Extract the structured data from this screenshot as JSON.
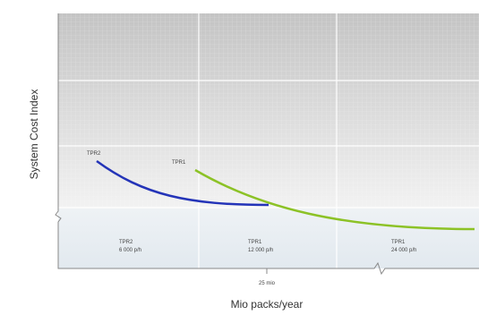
{
  "y_axis_label": "System Cost Index",
  "x_axis_label": "Mio packs/year",
  "x_marker": "25 mio",
  "curves": [
    {
      "label": "TPR2"
    },
    {
      "label": "TPR1"
    }
  ],
  "zones": [
    {
      "name": "TPR2",
      "speed": "6 000 p/h"
    },
    {
      "name": "TPR1",
      "speed": "12 000 p/h"
    },
    {
      "name": "TPR1",
      "speed": "24 000 p/h"
    }
  ]
}
